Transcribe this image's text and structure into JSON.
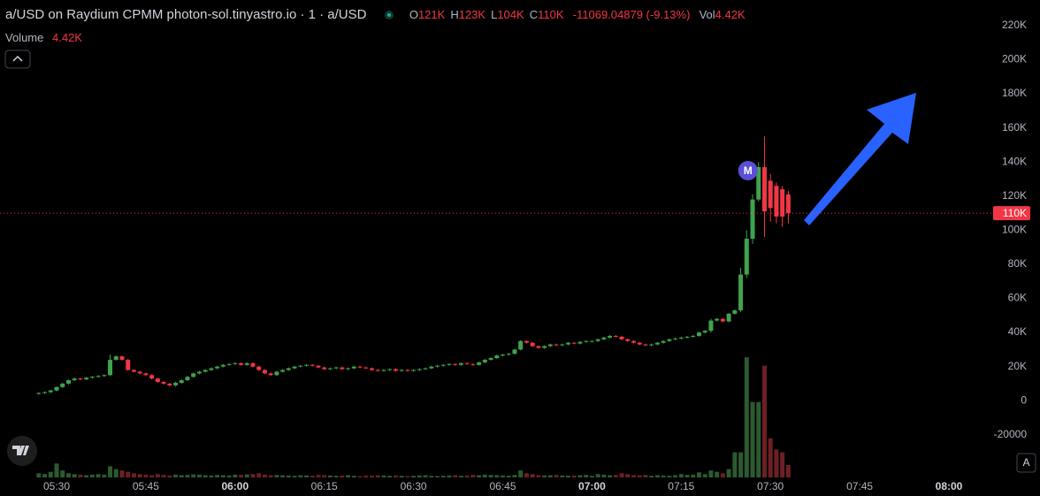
{
  "chart_data": {
    "type": "candlestick",
    "title": "a/USD on Raydium CPMM photon-sol.tinyastro.io · 1 · a/USD",
    "legend": [
      {
        "key": "O",
        "value": "121K"
      },
      {
        "key": "H",
        "value": "123K"
      },
      {
        "key": "L",
        "value": "104K"
      },
      {
        "key": "C",
        "value": "110K"
      }
    ],
    "change": "-11069.04879 (-9.13%)",
    "vol_key": "Vol",
    "vol_value": "4.42K",
    "volume_name": "Volume",
    "volume_value": "4.42K",
    "marker": "M",
    "close_label": "110K",
    "scale_button": "A",
    "up_color": "#3fa34d",
    "down_color": "#f23645",
    "volume_up_color": "#2b5a2f",
    "volume_down_color": "#6e1f24",
    "grid": false,
    "ylim": [
      -45000,
      235000
    ],
    "yticks": [
      {
        "value": 220000,
        "label": "220K"
      },
      {
        "value": 200000,
        "label": "200K"
      },
      {
        "value": 180000,
        "label": "180K"
      },
      {
        "value": 160000,
        "label": "160K"
      },
      {
        "value": 140000,
        "label": "140K"
      },
      {
        "value": 120000,
        "label": "120K"
      },
      {
        "value": 100000,
        "label": "100K"
      },
      {
        "value": 80000,
        "label": "80K"
      },
      {
        "value": 60000,
        "label": "60K"
      },
      {
        "value": 40000,
        "label": "40K"
      },
      {
        "value": 20000,
        "label": "20K"
      },
      0,
      -20000
    ],
    "volume_lim": [
      0,
      50000
    ],
    "xticks": [
      "05:30",
      "05:45",
      "06:00",
      "06:15",
      "06:30",
      "06:45",
      "07:00",
      "07:15",
      "07:30",
      "07:45",
      "08:00"
    ],
    "x": [
      "05:27",
      "05:28",
      "05:29",
      "05:30",
      "05:31",
      "05:32",
      "05:33",
      "05:34",
      "05:35",
      "05:36",
      "05:37",
      "05:38",
      "05:39",
      "05:40",
      "05:41",
      "05:42",
      "05:43",
      "05:44",
      "05:45",
      "05:46",
      "05:47",
      "05:48",
      "05:49",
      "05:50",
      "05:51",
      "05:52",
      "05:53",
      "05:54",
      "05:55",
      "05:56",
      "05:57",
      "05:58",
      "05:59",
      "06:00",
      "06:01",
      "06:02",
      "06:03",
      "06:04",
      "06:05",
      "06:06",
      "06:07",
      "06:08",
      "06:09",
      "06:10",
      "06:11",
      "06:12",
      "06:13",
      "06:14",
      "06:15",
      "06:16",
      "06:17",
      "06:18",
      "06:19",
      "06:20",
      "06:21",
      "06:22",
      "06:23",
      "06:24",
      "06:25",
      "06:26",
      "06:27",
      "06:28",
      "06:29",
      "06:30",
      "06:31",
      "06:32",
      "06:33",
      "06:34",
      "06:35",
      "06:36",
      "06:37",
      "06:38",
      "06:39",
      "06:40",
      "06:41",
      "06:42",
      "06:43",
      "06:44",
      "06:45",
      "06:46",
      "06:47",
      "06:48",
      "06:49",
      "06:50",
      "06:51",
      "06:52",
      "06:53",
      "06:54",
      "06:55",
      "06:56",
      "06:57",
      "06:58",
      "06:59",
      "07:00",
      "07:01",
      "07:02",
      "07:03",
      "07:04",
      "07:05",
      "07:06",
      "07:07",
      "07:08",
      "07:09",
      "07:10",
      "07:11",
      "07:12",
      "07:13",
      "07:14",
      "07:15",
      "07:16",
      "07:17",
      "07:18",
      "07:19",
      "07:20",
      "07:21",
      "07:22",
      "07:23",
      "07:24",
      "07:25",
      "07:26",
      "07:27",
      "07:28",
      "07:29",
      "07:30",
      "07:31",
      "07:32",
      "07:33"
    ],
    "open": [
      4000,
      4500,
      5000,
      6000,
      8000,
      10000,
      12000,
      13000,
      12500,
      13500,
      14000,
      14500,
      15000,
      24000,
      26000,
      24000,
      18000,
      17000,
      16000,
      15000,
      13000,
      11000,
      10000,
      9000,
      10500,
      12000,
      14000,
      16000,
      17000,
      18000,
      19000,
      20000,
      21000,
      21500,
      22000,
      21000,
      22000,
      20000,
      18000,
      16000,
      15000,
      17000,
      18000,
      19000,
      20000,
      20500,
      21000,
      20500,
      19500,
      18500,
      19000,
      19500,
      18500,
      19000,
      20000,
      19500,
      19000,
      18000,
      17500,
      18000,
      18500,
      17500,
      18000,
      17500,
      18000,
      18500,
      19000,
      20000,
      20500,
      21000,
      21500,
      21000,
      22000,
      21500,
      21000,
      22500,
      24000,
      25000,
      26500,
      27000,
      27500,
      30000,
      35000,
      34000,
      32000,
      31000,
      32000,
      33000,
      32500,
      33000,
      34000,
      33500,
      34500,
      35000,
      35000,
      36000,
      37000,
      38000,
      37500,
      36000,
      35000,
      34000,
      33000,
      32500,
      33000,
      34000,
      35000,
      36000,
      36500,
      37000,
      37500,
      38000,
      40000,
      41000,
      47000,
      48000,
      46500,
      51000,
      53000,
      74000,
      95000,
      118000,
      137000,
      129000,
      126000,
      124000,
      121000
    ],
    "high": [
      5000,
      5500,
      6500,
      8500,
      10500,
      12500,
      13500,
      13500,
      14000,
      14500,
      15000,
      15500,
      27000,
      26500,
      26500,
      24500,
      18500,
      17500,
      16500,
      15500,
      13500,
      11500,
      10500,
      11000,
      12500,
      14500,
      16500,
      17500,
      18500,
      19500,
      20500,
      21500,
      22000,
      22500,
      22500,
      22500,
      22500,
      20500,
      18500,
      16500,
      17500,
      18500,
      19500,
      20500,
      21000,
      21500,
      21500,
      21000,
      20000,
      19500,
      20000,
      20000,
      19500,
      20500,
      20500,
      20000,
      19500,
      18500,
      18500,
      19000,
      19000,
      18500,
      18500,
      18500,
      19000,
      19500,
      20500,
      21000,
      21500,
      22000,
      22000,
      22500,
      22500,
      22000,
      23000,
      24500,
      25500,
      27000,
      27500,
      28000,
      30500,
      35500,
      35500,
      34500,
      32500,
      32500,
      33500,
      33500,
      33500,
      34500,
      34500,
      35000,
      35500,
      35500,
      36500,
      37500,
      38500,
      38500,
      38000,
      36500,
      35500,
      34500,
      33500,
      33500,
      34500,
      35500,
      36500,
      37000,
      37500,
      38000,
      38500,
      40500,
      41500,
      48000,
      48500,
      48500,
      51500,
      53500,
      78000,
      100000,
      121000,
      140000,
      155000,
      133000,
      128000,
      126000,
      123000
    ],
    "low": [
      3500,
      4000,
      4500,
      5500,
      7500,
      9500,
      11500,
      12000,
      12000,
      13000,
      13500,
      14000,
      14500,
      23500,
      23500,
      17500,
      16500,
      15500,
      14500,
      12500,
      10500,
      9500,
      8500,
      8500,
      10000,
      11500,
      13500,
      15500,
      16500,
      17500,
      18500,
      19500,
      20500,
      21000,
      20500,
      20500,
      19500,
      17500,
      15500,
      14500,
      14500,
      16500,
      17500,
      18500,
      19500,
      20000,
      20000,
      19000,
      18000,
      18000,
      18500,
      18000,
      18000,
      18500,
      19000,
      18500,
      17500,
      17000,
      17000,
      17500,
      17000,
      17000,
      17000,
      17000,
      17500,
      18000,
      18500,
      19500,
      20000,
      20500,
      20500,
      20500,
      21000,
      20500,
      20500,
      22000,
      23500,
      24500,
      26000,
      26500,
      27000,
      29500,
      33500,
      31500,
      30500,
      30500,
      31500,
      32000,
      32000,
      32500,
      33000,
      33000,
      34000,
      34500,
      34500,
      35500,
      36500,
      37000,
      35500,
      34500,
      33500,
      32500,
      32000,
      32000,
      32500,
      33500,
      34500,
      35500,
      36000,
      36500,
      37000,
      37500,
      39500,
      40000,
      46500,
      46000,
      46000,
      50500,
      52000,
      72000,
      92000,
      117000,
      96000,
      105000,
      104000,
      102000,
      104000
    ],
    "close": [
      4500,
      5000,
      6000,
      8000,
      10000,
      12000,
      13000,
      12500,
      13500,
      14000,
      14500,
      15000,
      24000,
      26000,
      24000,
      18000,
      17000,
      16000,
      15000,
      13000,
      11000,
      10000,
      9000,
      10500,
      12000,
      14000,
      16000,
      17000,
      18000,
      19000,
      20000,
      21000,
      21500,
      22000,
      21000,
      22000,
      20000,
      18000,
      16000,
      15000,
      17000,
      18000,
      19000,
      20000,
      20500,
      21000,
      20500,
      19500,
      18500,
      19000,
      19500,
      18500,
      19000,
      20000,
      19500,
      19000,
      18000,
      17500,
      18000,
      18500,
      17500,
      18000,
      17500,
      18000,
      18500,
      19000,
      20000,
      20500,
      21000,
      21500,
      21000,
      22000,
      21500,
      21000,
      22500,
      24000,
      25000,
      26500,
      27000,
      27500,
      30000,
      35000,
      34000,
      32000,
      31000,
      32000,
      33000,
      32500,
      33000,
      34000,
      33500,
      34500,
      35000,
      35000,
      36000,
      37000,
      38000,
      37500,
      36000,
      35000,
      34000,
      33000,
      32500,
      33000,
      34000,
      35000,
      36000,
      36500,
      37000,
      37500,
      38000,
      40000,
      41000,
      47000,
      48000,
      46500,
      51000,
      53000,
      74000,
      95000,
      118000,
      137000,
      111000,
      113000,
      108000,
      108000,
      110000
    ],
    "volume": [
      1500,
      1200,
      2000,
      5000,
      2500,
      1500,
      1200,
      1000,
      800,
      1000,
      1200,
      1000,
      4000,
      3000,
      2500,
      2000,
      1500,
      1200,
      1000,
      800,
      1200,
      900,
      700,
      1000,
      800,
      900,
      1100,
      1000,
      800,
      700,
      900,
      800,
      700,
      1000,
      900,
      1100,
      1200,
      1500,
      1000,
      800,
      900,
      800,
      700,
      600,
      800,
      700,
      600,
      900,
      800,
      700,
      600,
      700,
      800,
      600,
      500,
      700,
      600,
      800,
      700,
      600,
      700,
      600,
      500,
      600,
      700,
      800,
      600,
      500,
      600,
      700,
      800,
      600,
      700,
      900,
      800,
      1000,
      900,
      800,
      700,
      600,
      900,
      2500,
      1500,
      1200,
      800,
      700,
      800,
      900,
      700,
      600,
      700,
      800,
      900,
      600,
      1200,
      1000,
      800,
      900,
      1500,
      1200,
      800,
      700,
      900,
      600,
      800,
      700,
      600,
      800,
      1200,
      900,
      1000,
      1800,
      1200,
      2500,
      2000,
      1500,
      3000,
      9000,
      9000,
      43000,
      27000,
      27000,
      40000,
      14000,
      10000,
      9000,
      4420
    ]
  }
}
